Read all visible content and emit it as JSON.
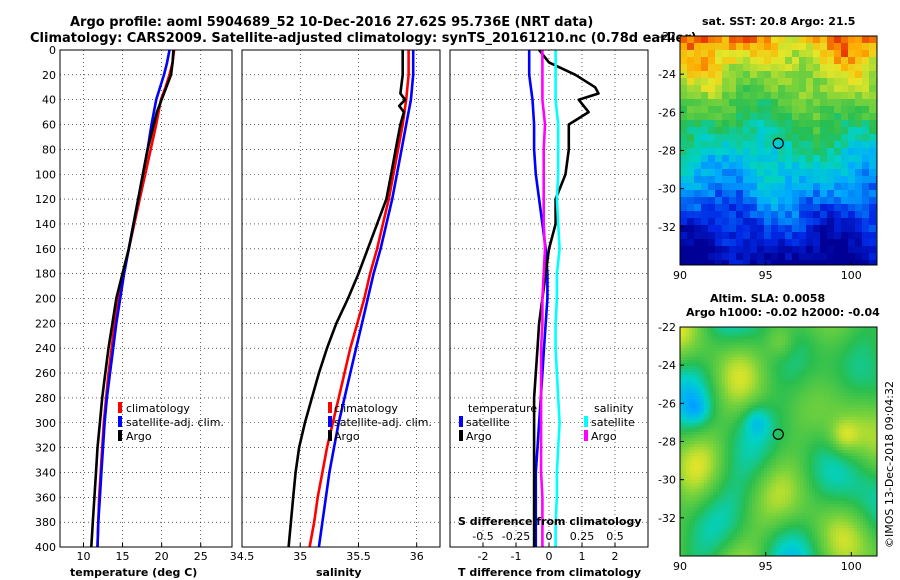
{
  "header": {
    "title_line1": "Argo profile: aoml 5904689_52 10-Dec-2016 27.62S 95.736E (NRT data)",
    "title_line2": "Climatology: CARS2009. Satellite-adjusted climatology: synTS_20161210.nc (0.78d earlier)"
  },
  "colors": {
    "climatology": "#ff0000",
    "satellite": "#0000ff",
    "argo": "#000000",
    "satellite_salinity": "#00ffff",
    "argo_salinity": "#ff00ff"
  },
  "chart_data": [
    {
      "type": "line",
      "name": "temperature-profile",
      "xlabel": "temperature (deg C)",
      "ylabel": "pressure",
      "xlim": [
        7,
        29
      ],
      "ylim": [
        400,
        0
      ],
      "xticks": [
        "10",
        "15",
        "20",
        "25"
      ],
      "xtick_values": [
        10,
        15,
        20,
        25
      ],
      "yticks": [
        "0",
        "20",
        "40",
        "60",
        "80",
        "100",
        "120",
        "140",
        "160",
        "180",
        "200",
        "220",
        "240",
        "260",
        "280",
        "300",
        "320",
        "340",
        "360",
        "380",
        "400"
      ],
      "ytick_values": [
        0,
        20,
        40,
        60,
        80,
        100,
        120,
        140,
        160,
        180,
        200,
        220,
        240,
        260,
        280,
        300,
        320,
        340,
        360,
        380,
        400
      ],
      "legend": [
        "climatology",
        "satellite-adj. clim.",
        "Argo"
      ],
      "legend_position": "lower-right",
      "series": [
        {
          "name": "climatology",
          "y": [
            0,
            10,
            20,
            30,
            40,
            60,
            80,
            100,
            120,
            140,
            160,
            180,
            200,
            220,
            240,
            260,
            280,
            300,
            320,
            340,
            360,
            380,
            400
          ],
          "x": [
            21.6,
            21.4,
            21.0,
            20.5,
            19.9,
            19.3,
            18.6,
            17.9,
            17.2,
            16.5,
            15.8,
            15.1,
            14.5,
            14.0,
            13.6,
            13.2,
            12.9,
            12.6,
            12.4,
            12.2,
            12.0,
            11.9,
            11.8
          ]
        },
        {
          "name": "satellite-adj. clim.",
          "y": [
            0,
            10,
            20,
            30,
            40,
            60,
            80,
            100,
            120,
            140,
            160,
            180,
            200,
            220,
            240,
            260,
            280,
            300,
            320,
            340,
            360,
            380,
            400
          ],
          "x": [
            21.0,
            20.7,
            20.3,
            19.8,
            19.3,
            18.7,
            18.2,
            17.6,
            17.0,
            16.4,
            15.8,
            15.2,
            14.7,
            14.2,
            13.8,
            13.4,
            13.0,
            12.7,
            12.5,
            12.3,
            12.1,
            11.9,
            11.8
          ]
        },
        {
          "name": "Argo",
          "y": [
            0,
            10,
            20,
            30,
            40,
            50,
            60,
            80,
            100,
            120,
            140,
            160,
            180,
            200,
            220,
            240,
            260,
            280,
            300,
            320,
            340,
            360,
            380,
            400
          ],
          "x": [
            21.5,
            21.4,
            21.2,
            20.6,
            20.0,
            19.4,
            19.0,
            18.2,
            17.6,
            17.0,
            16.4,
            15.8,
            15.0,
            14.2,
            13.7,
            13.2,
            12.8,
            12.4,
            12.1,
            11.8,
            11.6,
            11.4,
            11.2,
            11.0
          ]
        }
      ]
    },
    {
      "type": "line",
      "name": "salinity-profile",
      "xlabel": "salinity",
      "ylabel": "pressure",
      "xlim": [
        34.5,
        36.2
      ],
      "ylim": [
        400,
        0
      ],
      "xticks": [
        "34.5",
        "35",
        "35.5",
        "36"
      ],
      "xtick_values": [
        34.5,
        35,
        35.5,
        36
      ],
      "legend": [
        "climatology",
        "satellite-adj. clim.",
        "Argo"
      ],
      "legend_position": "lower-right",
      "series": [
        {
          "name": "climatology",
          "y": [
            0,
            20,
            40,
            60,
            80,
            100,
            120,
            140,
            160,
            180,
            200,
            220,
            240,
            260,
            280,
            300,
            320,
            340,
            360,
            380,
            400
          ],
          "x": [
            35.93,
            35.93,
            35.91,
            35.88,
            35.84,
            35.8,
            35.76,
            35.71,
            35.66,
            35.6,
            35.55,
            35.49,
            35.43,
            35.38,
            35.33,
            35.28,
            35.23,
            35.19,
            35.15,
            35.12,
            35.08
          ]
        },
        {
          "name": "satellite-adj. clim.",
          "y": [
            0,
            20,
            40,
            60,
            80,
            100,
            120,
            140,
            160,
            180,
            200,
            220,
            240,
            260,
            280,
            300,
            320,
            340,
            360,
            380,
            400
          ],
          "x": [
            35.97,
            35.97,
            35.95,
            35.91,
            35.87,
            35.83,
            35.79,
            35.74,
            35.69,
            35.63,
            35.58,
            35.53,
            35.48,
            35.43,
            35.38,
            35.33,
            35.29,
            35.25,
            35.22,
            35.19,
            35.16
          ]
        },
        {
          "name": "Argo",
          "y": [
            0,
            20,
            35,
            40,
            45,
            50,
            60,
            80,
            100,
            120,
            140,
            160,
            180,
            200,
            220,
            240,
            260,
            280,
            300,
            320,
            340,
            360,
            380,
            400
          ],
          "x": [
            35.88,
            35.88,
            35.86,
            35.9,
            35.85,
            35.89,
            35.86,
            35.82,
            35.78,
            35.74,
            35.66,
            35.58,
            35.5,
            35.41,
            35.31,
            35.23,
            35.16,
            35.1,
            35.04,
            34.99,
            34.96,
            34.94,
            34.92,
            34.9
          ]
        }
      ]
    },
    {
      "type": "line",
      "name": "difference-profile",
      "xlabel": "T difference from climatology",
      "xlabel_top": "S difference from climatology",
      "xlim": [
        -3,
        3
      ],
      "ylim": [
        400,
        0
      ],
      "xticks": [
        "-2",
        "-1",
        "0",
        "1",
        "2"
      ],
      "xtick_values": [
        -2,
        -1,
        0,
        1,
        2
      ],
      "xticks_top": [
        "-0.5",
        "-0.25",
        "0",
        "0.25",
        "0.5"
      ],
      "xtick_top_values": [
        -0.5,
        -0.25,
        0,
        0.25,
        0.5
      ],
      "legend_left_title": "temperature",
      "legend_left": [
        "satellite",
        "Argo"
      ],
      "legend_right_title": "salinity",
      "legend_right": [
        "satellite",
        "Argo"
      ],
      "series": [
        {
          "name": "temperature satellite",
          "y": [
            0,
            20,
            40,
            60,
            80,
            100,
            120,
            140,
            160,
            180,
            200,
            220,
            240,
            260,
            280,
            300,
            320,
            340,
            360,
            380,
            400
          ],
          "x": [
            -0.6,
            -0.6,
            -0.5,
            -0.45,
            -0.45,
            -0.4,
            -0.3,
            -0.2,
            -0.1,
            -0.05,
            -0.05,
            -0.1,
            -0.15,
            -0.2,
            -0.25,
            -0.3,
            -0.35,
            -0.4,
            -0.4,
            -0.4,
            -0.4
          ]
        },
        {
          "name": "temperature Argo",
          "y": [
            0,
            10,
            20,
            30,
            35,
            40,
            50,
            60,
            80,
            100,
            120,
            140,
            160,
            180,
            200,
            220,
            240,
            260,
            280,
            300,
            320,
            340,
            360,
            380,
            400
          ],
          "x": [
            -0.3,
            0.0,
            0.8,
            1.4,
            1.5,
            0.9,
            1.2,
            0.6,
            0.6,
            0.5,
            0.2,
            0.2,
            0.0,
            -0.1,
            -0.2,
            -0.3,
            -0.35,
            -0.4,
            -0.45,
            -0.45,
            -0.45,
            -0.45,
            -0.45,
            -0.45,
            -0.45
          ]
        },
        {
          "name": "salinity satellite",
          "y": [
            0,
            20,
            40,
            60,
            80,
            100,
            120,
            140,
            160,
            180,
            200,
            220,
            240,
            260,
            280,
            300,
            320,
            340,
            360,
            380,
            400
          ],
          "x": [
            0.05,
            0.05,
            0.05,
            0.07,
            0.07,
            0.07,
            0.06,
            0.07,
            0.08,
            0.06,
            0.06,
            0.05,
            0.05,
            0.06,
            0.07,
            0.08,
            0.07,
            0.06,
            0.06,
            0.05,
            0.05
          ]
        },
        {
          "name": "salinity Argo",
          "y": [
            0,
            20,
            40,
            60,
            80,
            100,
            120,
            140,
            160,
            180,
            200,
            220,
            240,
            260,
            280,
            300,
            320,
            340,
            360,
            380,
            400
          ],
          "x": [
            -0.05,
            -0.05,
            -0.05,
            -0.03,
            -0.04,
            -0.04,
            -0.04,
            -0.04,
            -0.03,
            -0.04,
            -0.05,
            -0.05,
            -0.06,
            -0.06,
            -0.06,
            -0.06,
            -0.06,
            -0.06,
            -0.05,
            -0.05,
            -0.05
          ]
        }
      ]
    },
    {
      "type": "heatmap",
      "name": "sst-map",
      "title": "sat. SST: 20.8 Argo: 21.5",
      "xlim": [
        90,
        101.5
      ],
      "ylim": [
        -34,
        -22
      ],
      "xticks": [
        "90",
        "95",
        "100"
      ],
      "xtick_values": [
        90,
        95,
        100
      ],
      "yticks": [
        "-22",
        "-24",
        "-26",
        "-28",
        "-30",
        "-32"
      ],
      "ytick_values": [
        -22,
        -24,
        -26,
        -28,
        -30,
        -32
      ],
      "marker": [
        95.736,
        -27.62
      ]
    },
    {
      "type": "heatmap",
      "name": "sla-map",
      "title_line1": "Altim. SLA: 0.0058",
      "title_line2": "Argo h1000: -0.02 h2000: -0.04",
      "xlim": [
        90,
        101.5
      ],
      "ylim": [
        -34,
        -22
      ],
      "xticks": [
        "90",
        "95",
        "100"
      ],
      "xtick_values": [
        90,
        95,
        100
      ],
      "yticks": [
        "-22",
        "-24",
        "-26",
        "-28",
        "-30",
        "-32"
      ],
      "ytick_values": [
        -22,
        -24,
        -26,
        -28,
        -30,
        -32
      ],
      "marker": [
        95.736,
        -27.62
      ]
    }
  ],
  "footer": {
    "credit": "©IMOS 13-Dec-2018 09:04:32"
  }
}
